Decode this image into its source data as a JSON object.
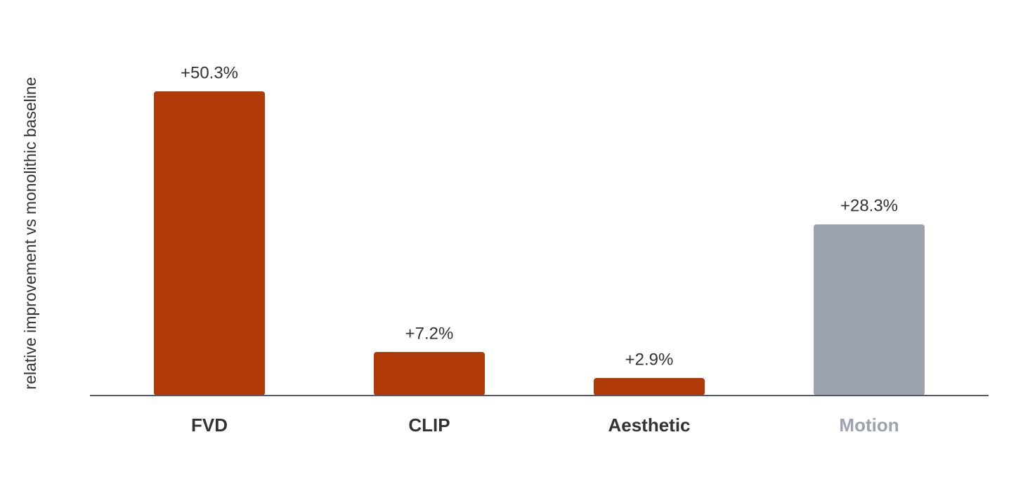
{
  "chart_data": {
    "type": "bar",
    "y_label": "relative improvement vs monolithic baseline",
    "categories": [
      "FVD",
      "CLIP",
      "Aesthetic",
      "Motion"
    ],
    "values": [
      50.3,
      7.2,
      2.9,
      28.3
    ],
    "value_labels": [
      "+50.3%",
      "+7.2%",
      "+2.9%",
      "+28.3%"
    ],
    "colors": [
      "#b03a07",
      "#b03a07",
      "#b03a07",
      "#9ca3af"
    ],
    "label_colors": [
      "#333333",
      "#333333",
      "#333333",
      "#9ca3af"
    ],
    "ylim": [
      0,
      55
    ]
  }
}
